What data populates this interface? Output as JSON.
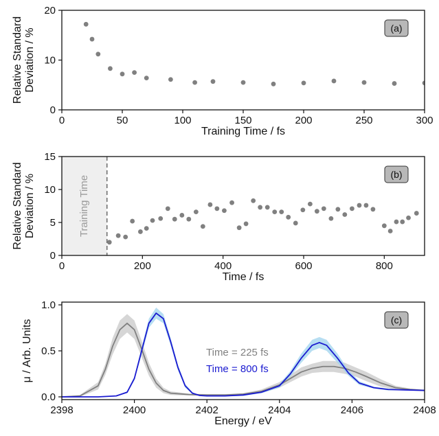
{
  "chart_data": [
    {
      "panel": "(a)",
      "type": "scatter",
      "xlabel": "Training Time / fs",
      "ylabel": [
        "Relative Standard",
        "Deviation / %"
      ],
      "xlim": [
        0,
        300
      ],
      "ylim": [
        0,
        20
      ],
      "xticks": [
        0,
        50,
        100,
        150,
        200,
        250,
        300
      ],
      "yticks": [
        0,
        10,
        20
      ],
      "marker_color": "#808080",
      "points": [
        [
          20,
          17.2
        ],
        [
          25,
          14.2
        ],
        [
          30,
          11.2
        ],
        [
          40,
          8.3
        ],
        [
          50,
          7.2
        ],
        [
          60,
          7.5
        ],
        [
          70,
          6.4
        ],
        [
          90,
          6.1
        ],
        [
          110,
          5.5
        ],
        [
          125,
          5.7
        ],
        [
          150,
          5.5
        ],
        [
          175,
          5.2
        ],
        [
          200,
          5.4
        ],
        [
          225,
          5.8
        ],
        [
          250,
          5.5
        ],
        [
          275,
          5.3
        ],
        [
          300,
          5.4
        ]
      ]
    },
    {
      "panel": "(b)",
      "type": "scatter",
      "xlabel": "Time / fs",
      "ylabel": [
        "Relative Standard",
        "Deviation / %"
      ],
      "xlim": [
        0,
        900
      ],
      "ylim": [
        0,
        15
      ],
      "xticks": [
        0,
        200,
        400,
        600,
        800
      ],
      "yticks": [
        0,
        5,
        10,
        15
      ],
      "marker_color": "#808080",
      "shaded_region": {
        "x": [
          0,
          112
        ],
        "label": "Training Time",
        "color": "#efefef"
      },
      "dashed_line_x": 112,
      "points": [
        [
          118,
          2.0
        ],
        [
          140,
          3.0
        ],
        [
          158,
          2.8
        ],
        [
          175,
          5.2
        ],
        [
          195,
          3.6
        ],
        [
          210,
          4.1
        ],
        [
          225,
          5.3
        ],
        [
          245,
          5.6
        ],
        [
          263,
          7.1
        ],
        [
          280,
          5.5
        ],
        [
          298,
          6.1
        ],
        [
          315,
          5.5
        ],
        [
          333,
          6.6
        ],
        [
          350,
          4.4
        ],
        [
          368,
          7.7
        ],
        [
          385,
          7.1
        ],
        [
          403,
          6.8
        ],
        [
          422,
          8.0
        ],
        [
          440,
          4.2
        ],
        [
          457,
          4.8
        ],
        [
          475,
          8.3
        ],
        [
          492,
          7.3
        ],
        [
          510,
          7.3
        ],
        [
          528,
          6.6
        ],
        [
          545,
          6.6
        ],
        [
          562,
          5.8
        ],
        [
          580,
          4.9
        ],
        [
          598,
          6.9
        ],
        [
          616,
          7.8
        ],
        [
          633,
          6.7
        ],
        [
          650,
          7.1
        ],
        [
          668,
          5.6
        ],
        [
          685,
          7.0
        ],
        [
          702,
          6.2
        ],
        [
          720,
          7.1
        ],
        [
          738,
          7.6
        ],
        [
          755,
          7.6
        ],
        [
          772,
          7.0
        ],
        [
          800,
          4.5
        ],
        [
          815,
          3.7
        ],
        [
          830,
          5.1
        ],
        [
          845,
          5.1
        ],
        [
          860,
          5.7
        ],
        [
          880,
          6.4
        ]
      ]
    },
    {
      "panel": "(c)",
      "type": "line",
      "xlabel": "Energy / eV",
      "ylabel": "μ / Arb. Units",
      "xlim": [
        2398,
        2408
      ],
      "ylim": [
        -0.03,
        1.03
      ],
      "xticks": [
        2398,
        2400,
        2402,
        2404,
        2406,
        2408
      ],
      "yticks": [
        0.0,
        0.5,
        1.0
      ],
      "series": [
        {
          "name": "Time = 225 fs",
          "color": "#808080",
          "band_color": "#c8c8c8",
          "x": [
            2398.0,
            2398.5,
            2399.0,
            2399.2,
            2399.4,
            2399.6,
            2399.8,
            2400.0,
            2400.2,
            2400.4,
            2400.6,
            2400.8,
            2401.0,
            2401.5,
            2402.0,
            2402.5,
            2403.0,
            2403.5,
            2404.0,
            2404.3,
            2404.6,
            2404.9,
            2405.2,
            2405.5,
            2405.8,
            2406.1,
            2406.4,
            2406.8,
            2407.2,
            2407.6,
            2408.0
          ],
          "y": [
            0.0,
            0.01,
            0.12,
            0.3,
            0.55,
            0.73,
            0.8,
            0.73,
            0.52,
            0.3,
            0.15,
            0.07,
            0.04,
            0.025,
            0.02,
            0.02,
            0.03,
            0.06,
            0.13,
            0.2,
            0.27,
            0.31,
            0.33,
            0.33,
            0.31,
            0.27,
            0.22,
            0.15,
            0.1,
            0.08,
            0.07
          ],
          "band": [
            0.0,
            0.01,
            0.04,
            0.06,
            0.09,
            0.1,
            0.1,
            0.1,
            0.09,
            0.07,
            0.05,
            0.03,
            0.02,
            0.01,
            0.01,
            0.01,
            0.01,
            0.02,
            0.03,
            0.04,
            0.05,
            0.05,
            0.06,
            0.06,
            0.06,
            0.05,
            0.05,
            0.04,
            0.02,
            0.01,
            0.01
          ]
        },
        {
          "name": "Time = 800 fs",
          "color": "#1a1ad0",
          "band_color": "#9fd3ee",
          "x": [
            2398.0,
            2399.0,
            2399.5,
            2399.8,
            2400.0,
            2400.2,
            2400.4,
            2400.6,
            2400.8,
            2401.0,
            2401.2,
            2401.4,
            2401.6,
            2401.8,
            2402.0,
            2402.5,
            2403.0,
            2403.5,
            2404.0,
            2404.3,
            2404.6,
            2404.9,
            2405.1,
            2405.3,
            2405.6,
            2405.9,
            2406.2,
            2406.6,
            2407.0,
            2407.5,
            2408.0
          ],
          "y": [
            0.0,
            0.0,
            0.01,
            0.05,
            0.2,
            0.5,
            0.8,
            0.91,
            0.85,
            0.6,
            0.32,
            0.12,
            0.04,
            0.015,
            0.01,
            0.01,
            0.02,
            0.05,
            0.12,
            0.25,
            0.42,
            0.56,
            0.59,
            0.56,
            0.42,
            0.26,
            0.15,
            0.1,
            0.08,
            0.075,
            0.07
          ],
          "band": [
            0.0,
            0.0,
            0.0,
            0.01,
            0.02,
            0.04,
            0.05,
            0.06,
            0.05,
            0.04,
            0.03,
            0.02,
            0.01,
            0.0,
            0.0,
            0.0,
            0.01,
            0.01,
            0.02,
            0.03,
            0.05,
            0.06,
            0.06,
            0.06,
            0.05,
            0.03,
            0.02,
            0.01,
            0.01,
            0.0,
            0.0
          ]
        }
      ]
    }
  ]
}
